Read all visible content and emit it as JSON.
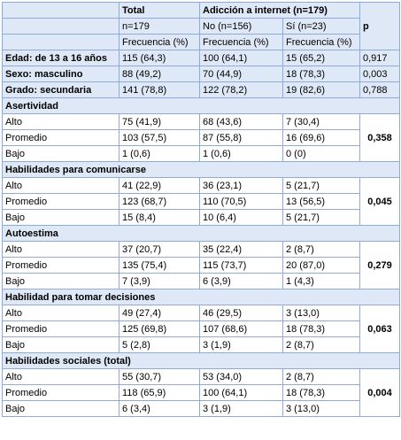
{
  "header": {
    "total": "Total",
    "addiction": "Adicción a internet (n=179)",
    "p": "p",
    "n_total": "n=179",
    "n_no": "No (n=156)",
    "n_si": "Sí (n=23)",
    "freq": [
      "Frecuencia (%)",
      "Frecuencia (%)",
      "Frecuencia (%)"
    ]
  },
  "general": [
    {
      "label": "Edad: de 13 a 16 años",
      "total": "115 (64,3)",
      "no": "100 (64,1)",
      "si": "15 (65,2)",
      "p": "0,917"
    },
    {
      "label": "Sexo: masculino",
      "total": "88 (49,2)",
      "no": "70 (44,9)",
      "si": "18 (78,3)",
      "p": "0,003"
    },
    {
      "label": "Grado: secundaria",
      "total": "141 (78,8)",
      "no": "122 (78,2)",
      "si": "19 (82,6)",
      "p": "0,788"
    }
  ],
  "sections": [
    {
      "title": "Asertividad",
      "p": "0,358",
      "rows": [
        {
          "label": "Alto",
          "total": "75 (41,9)",
          "no": "68 (43,6)",
          "si": "7 (30,4)"
        },
        {
          "label": "Promedio",
          "total": "103 (57,5)",
          "no": "87 (55,8)",
          "si": "16 (69,6)"
        },
        {
          "label": "Bajo",
          "total": "1 (0,6)",
          "no": "1 (0,6)",
          "si": "0 (0)"
        }
      ]
    },
    {
      "title": "Habilidades para comunicarse",
      "p": "0,045",
      "rows": [
        {
          "label": "Alto",
          "total": "41 (22,9)",
          "no": "36 (23,1)",
          "si": "5 (21,7)"
        },
        {
          "label": "Promedio",
          "total": "123 (68,7)",
          "no": "110 (70,5)",
          "si": "13 (56,5)"
        },
        {
          "label": "Bajo",
          "total": "15 (8,4)",
          "no": "10 (6,4)",
          "si": "5 (21,7)"
        }
      ]
    },
    {
      "title": "Autoestima",
      "p": "0,279",
      "rows": [
        {
          "label": "Alto",
          "total": "37 (20,7)",
          "no": "35 (22,4)",
          "si": "2 (8,7)"
        },
        {
          "label": "Promedio",
          "total": "135 (75,4)",
          "no": "115 (73,7)",
          "si": "20 (87,0)"
        },
        {
          "label": "Bajo",
          "total": "7 (3,9)",
          "no": "6 (3,9)",
          "si": "1 (4,3)"
        }
      ]
    },
    {
      "title": "Habilidad para tomar decisiones",
      "p": "0,063",
      "rows": [
        {
          "label": "Alto",
          "total": "49 (27,4)",
          "no": "46 (29,5)",
          "si": "3 (13,0)"
        },
        {
          "label": "Promedio",
          "total": "125 (69,8)",
          "no": "107 (68,6)",
          "si": "18 (78,3)"
        },
        {
          "label": "Bajo",
          "total": "5 (2,8)",
          "no": "3 (1,9)",
          "si": "2 (8,7)"
        }
      ]
    },
    {
      "title": "Habilidades sociales (total)",
      "p": "0,004",
      "rows": [
        {
          "label": "Alto",
          "total": "55 (30,7)",
          "no": "53 (34,0)",
          "si": "2 (8,7)"
        },
        {
          "label": "Promedio",
          "total": "118 (65,9)",
          "no": "100 (64,1)",
          "si": "18 (78,3)"
        },
        {
          "label": "Bajo",
          "total": "6 (3,4)",
          "no": "3 (1,9)",
          "si": "3 (13,0)"
        }
      ]
    }
  ]
}
